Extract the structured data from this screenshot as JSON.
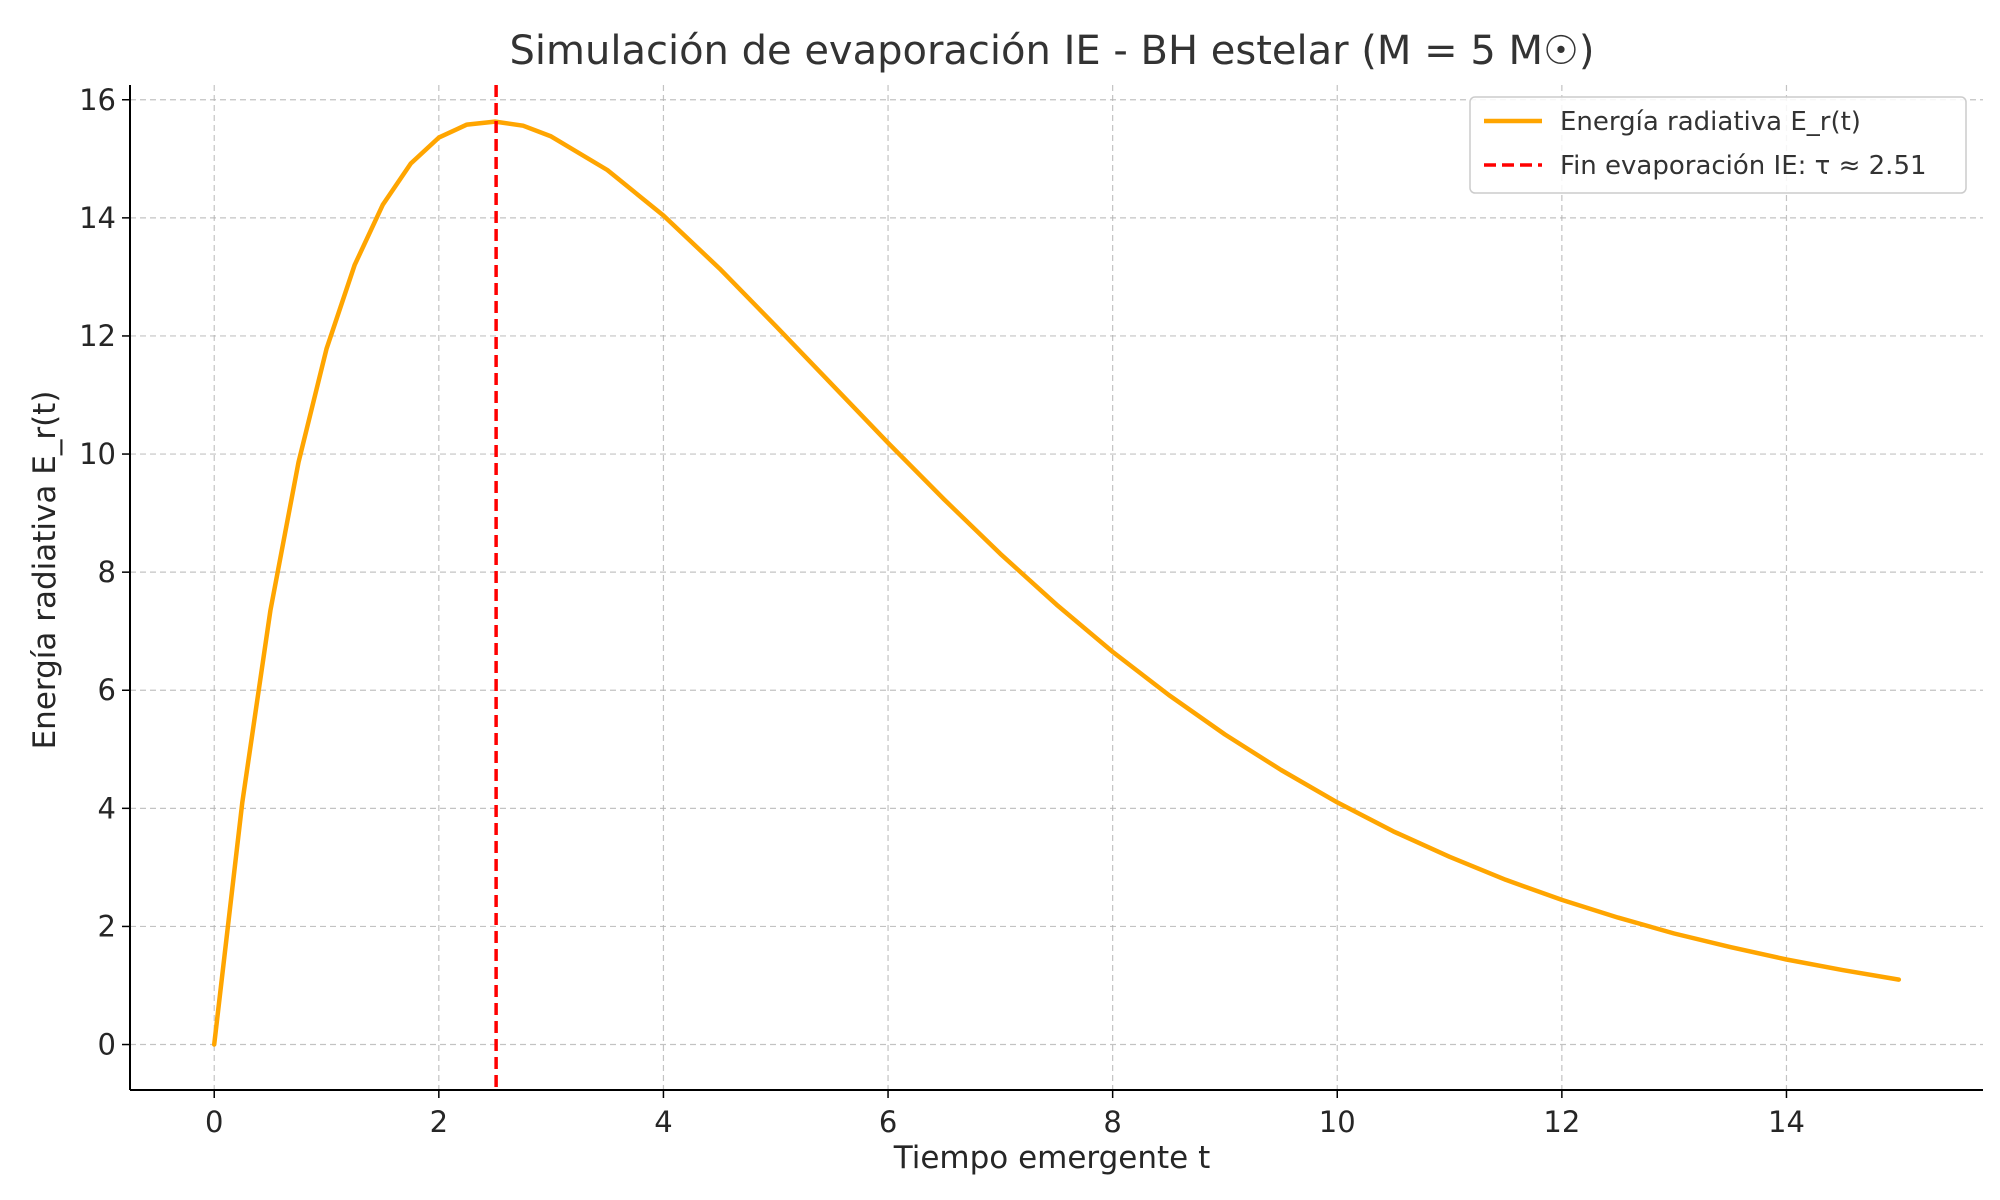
{
  "chart_data": {
    "type": "line",
    "title": "Simulación de evaporación IE - BH estelar (M = 5 M☉)",
    "xlabel": "Tiempo emergente t",
    "ylabel": "Energía radiativa E_r(t)",
    "xlim": [
      -0.75,
      15.75
    ],
    "ylim": [
      -0.77,
      16.25
    ],
    "xticks": [
      0,
      2,
      4,
      6,
      8,
      10,
      12,
      14
    ],
    "yticks": [
      0,
      2,
      4,
      6,
      8,
      10,
      12,
      14,
      16
    ],
    "grid": true,
    "legend_position": "upper right",
    "series": [
      {
        "name": "Energía radiativa E_r(t)",
        "color": "#FFA500",
        "style": "solid",
        "x": [
          0,
          0.25,
          0.5,
          0.75,
          1.0,
          1.25,
          1.5,
          1.75,
          2.0,
          2.25,
          2.5,
          2.75,
          3.0,
          3.5,
          4.0,
          4.5,
          5.0,
          5.5,
          6.0,
          6.5,
          7.0,
          7.5,
          8.0,
          8.5,
          9.0,
          9.5,
          10.0,
          10.5,
          11.0,
          11.5,
          12.0,
          12.5,
          13.0,
          13.5,
          14.0,
          14.5,
          15.0
        ],
        "y": [
          0,
          4.1,
          7.35,
          9.86,
          11.78,
          13.2,
          14.22,
          14.92,
          15.36,
          15.58,
          15.63,
          15.56,
          15.38,
          14.81,
          14.04,
          13.14,
          12.17,
          11.18,
          10.19,
          9.23,
          8.31,
          7.45,
          6.65,
          5.92,
          5.25,
          4.65,
          4.1,
          3.61,
          3.18,
          2.79,
          2.45,
          2.15,
          1.88,
          1.65,
          1.44,
          1.26,
          1.1
        ]
      },
      {
        "name": "Fin evaporación IE: τ ≈ 2.51",
        "color": "#FF0000",
        "style": "dashed",
        "vline_x": 2.51
      }
    ]
  }
}
